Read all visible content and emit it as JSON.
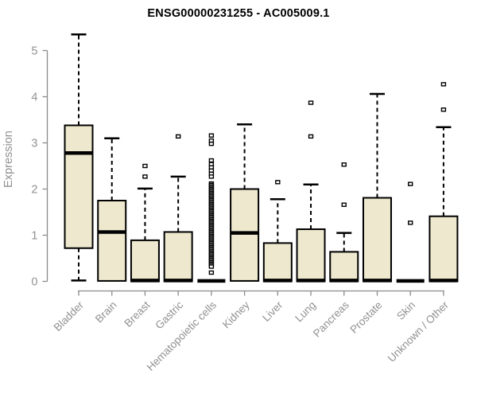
{
  "header": {
    "title": "ENSG00000231255 - AC005009.1"
  },
  "chart_data": {
    "type": "boxplot",
    "title": "ENSG00000231255 - AC005009.1",
    "xlabel": "",
    "ylabel": "Expression",
    "ylim": [
      0,
      5.4
    ],
    "yticks": [
      0,
      1,
      2,
      3,
      4,
      5
    ],
    "grid": false,
    "legend": "none",
    "colors": {
      "box_fill": "#EDE8CE",
      "box_stroke": "#000000",
      "median": "#000000",
      "axis_line": "#8C8C8C",
      "axis_text": "#919191",
      "title_text": "#000000",
      "background": "#FFFFFF"
    },
    "categories": [
      "Bladder",
      "Brain",
      "Breast",
      "Gastric",
      "Hematopoietic cells",
      "Kidney",
      "Liver",
      "Lung",
      "Pancreas",
      "Prostate",
      "Skin",
      "Unknown / Other"
    ],
    "series": [
      {
        "name": "Bladder",
        "whislo": 0.02,
        "q1": 0.72,
        "med": 2.78,
        "q3": 3.38,
        "whishi": 5.35,
        "outliers": []
      },
      {
        "name": "Brain",
        "whislo": 0.01,
        "q1": 0.01,
        "med": 1.07,
        "q3": 1.75,
        "whishi": 3.1,
        "outliers": []
      },
      {
        "name": "Breast",
        "whislo": 0.0,
        "q1": 0.0,
        "med": 0.02,
        "q3": 0.89,
        "whishi": 2.01,
        "outliers": [
          2.27,
          2.5
        ]
      },
      {
        "name": "Gastric",
        "whislo": 0.0,
        "q1": 0.0,
        "med": 0.02,
        "q3": 1.07,
        "whishi": 2.27,
        "outliers": [
          3.14
        ]
      },
      {
        "name": "Hematopoietic cells",
        "whislo": 0.0,
        "q1": 0.0,
        "med": 0.01,
        "q3": 0.01,
        "whishi": 0.01,
        "outliers": [
          3.16,
          3.05,
          2.98,
          2.62,
          2.54,
          2.47,
          2.4,
          2.33,
          2.27,
          2.12,
          2.09,
          2.06,
          2.03,
          2.0,
          1.97,
          1.94,
          1.91,
          1.88,
          1.85,
          1.82,
          1.79,
          1.76,
          1.73,
          1.7,
          1.67,
          1.64,
          1.61,
          1.58,
          1.55,
          1.52,
          1.49,
          1.46,
          1.43,
          1.4,
          1.37,
          1.34,
          1.31,
          1.28,
          1.25,
          1.22,
          1.19,
          1.16,
          1.13,
          1.1,
          1.07,
          1.04,
          1.01,
          0.98,
          0.95,
          0.92,
          0.89,
          0.86,
          0.83,
          0.8,
          0.77,
          0.74,
          0.71,
          0.68,
          0.65,
          0.62,
          0.59,
          0.56,
          0.53,
          0.5,
          0.47,
          0.44,
          0.41,
          0.38,
          0.35,
          0.32,
          0.19
        ]
      },
      {
        "name": "Kidney",
        "whislo": 0.01,
        "q1": 0.01,
        "med": 1.05,
        "q3": 2.0,
        "whishi": 3.4,
        "outliers": []
      },
      {
        "name": "Liver",
        "whislo": 0.0,
        "q1": 0.0,
        "med": 0.02,
        "q3": 0.83,
        "whishi": 1.78,
        "outliers": [
          2.15
        ]
      },
      {
        "name": "Lung",
        "whislo": 0.0,
        "q1": 0.0,
        "med": 0.02,
        "q3": 1.13,
        "whishi": 2.1,
        "outliers": [
          3.14,
          3.87
        ]
      },
      {
        "name": "Pancreas",
        "whislo": 0.0,
        "q1": 0.0,
        "med": 0.02,
        "q3": 0.64,
        "whishi": 1.05,
        "outliers": [
          1.66,
          2.53
        ]
      },
      {
        "name": "Prostate",
        "whislo": 0.0,
        "q1": 0.0,
        "med": 0.02,
        "q3": 1.81,
        "whishi": 4.06,
        "outliers": []
      },
      {
        "name": "Skin",
        "whislo": 0.0,
        "q1": 0.0,
        "med": 0.01,
        "q3": 0.01,
        "whishi": 0.01,
        "outliers": [
          1.27,
          2.11
        ]
      },
      {
        "name": "Unknown / Other",
        "whislo": 0.0,
        "q1": 0.0,
        "med": 0.02,
        "q3": 1.41,
        "whishi": 3.34,
        "outliers": [
          3.72,
          4.27
        ]
      }
    ]
  }
}
